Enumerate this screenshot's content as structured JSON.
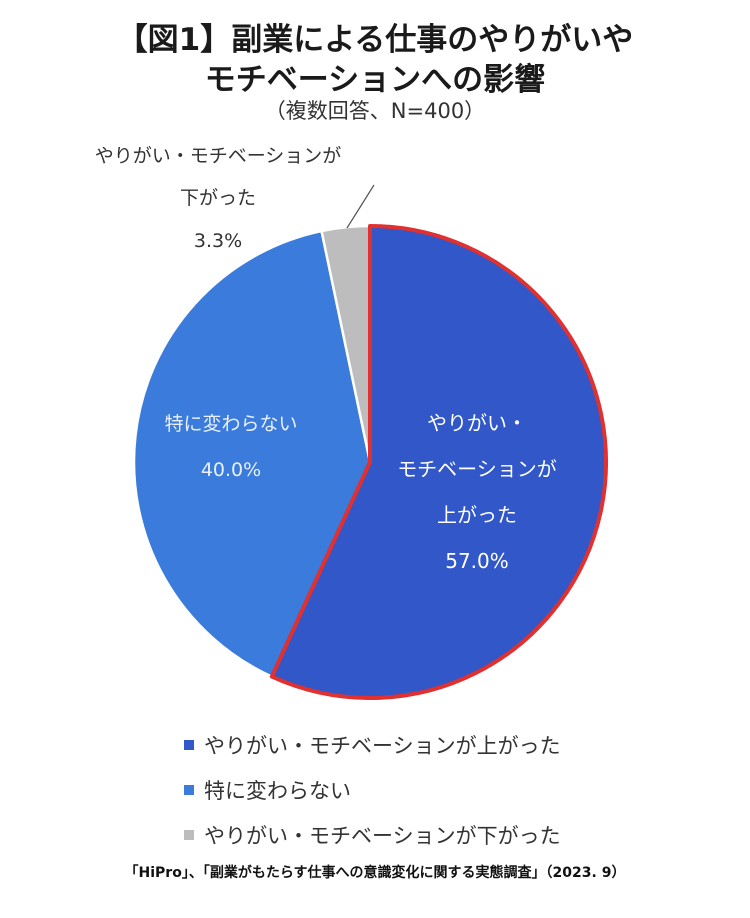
{
  "header": {
    "title_line1": "【図1】副業による仕事のやりがいや",
    "title_line2": "モチベーションへの影響",
    "subtitle": "（複数回答、N=400）"
  },
  "chart_data": {
    "type": "pie",
    "start_angle_deg": 0,
    "direction": "clockwise",
    "slices": [
      {
        "label_lines": [
          "やりがい・",
          "モチベーションが",
          "上がった"
        ],
        "legend": "やりがい・モチベーションが上がった",
        "value": 57.0,
        "value_label": "57.0%",
        "color": "#3157c8",
        "highlight_color": "#e03030"
      },
      {
        "label_lines": [
          "特に変わらない"
        ],
        "legend": "特に変わらない",
        "value": 40.0,
        "value_label": "40.0%",
        "color": "#3a7bdc"
      },
      {
        "label_lines": [
          "やりがい・モチベーションが",
          "下がった"
        ],
        "legend": "やりがい・モチベーションが下がった",
        "value": 3.3,
        "value_label": "3.3%",
        "color": "#bdbdbd"
      }
    ]
  },
  "legend": [
    {
      "label": "やりがい・モチベーションが上がった",
      "color": "#3157c8"
    },
    {
      "label": "特に変わらない",
      "color": "#3a7bdc"
    },
    {
      "label": "やりがい・モチベーションが下がった",
      "color": "#bdbdbd"
    }
  ],
  "source": "「HiPro」、「副業がもたらす仕事への意識変化に関する実態調査」（2023. 9）"
}
